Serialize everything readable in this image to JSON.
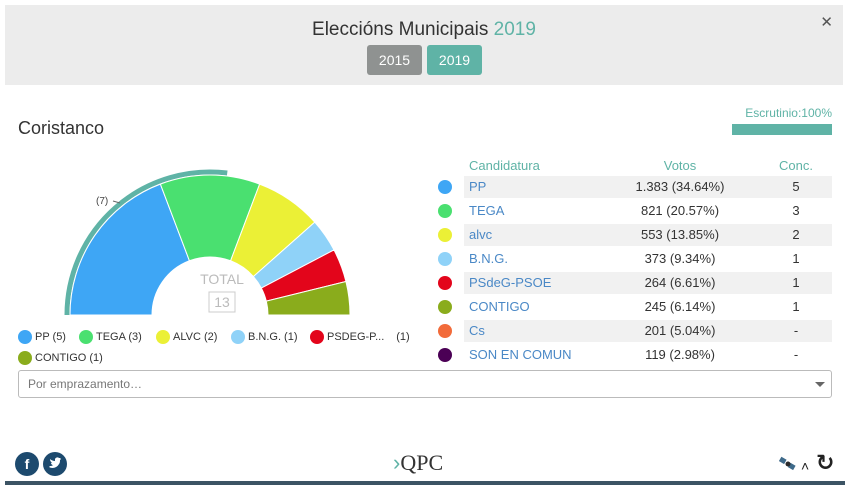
{
  "header": {
    "title_prefix": "Eleccións Municipais",
    "title_year": "2019",
    "years": [
      {
        "label": "2015",
        "color": "#8f9291"
      },
      {
        "label": "2019",
        "color": "#5fb3a6"
      }
    ],
    "close_label": "✕"
  },
  "place": "Coristanco",
  "scrutiny": {
    "label": "Escrutinio:100%",
    "value": 100
  },
  "hemicycle": {
    "total_label": "TOTAL",
    "total_value": "13",
    "majority_label": "(7)",
    "outer_arc_color": "#5fb3a6",
    "seats": [
      {
        "party": "PP",
        "seats": 5,
        "color": "#3ea6f5"
      },
      {
        "party": "TEGA",
        "seats": 3,
        "color": "#4ae070"
      },
      {
        "party": "ALVC",
        "seats": 2,
        "color": "#ebf036"
      },
      {
        "party": "B.N.G.",
        "seats": 1,
        "color": "#8fd2f8"
      },
      {
        "party": "PSdeG-PSOE",
        "seats": 1,
        "color": "#e3051b"
      },
      {
        "party": "CONTIGO",
        "seats": 1,
        "color": "#8aac1c"
      }
    ]
  },
  "legend": [
    {
      "label": "PP (5)",
      "color": "#3ea6f5"
    },
    {
      "label": "TEGA (3)",
      "color": "#4ae070"
    },
    {
      "label": "ALVC (2)",
      "color": "#ebf036"
    },
    {
      "label": "B.N.G. (1)",
      "color": "#8fd2f8"
    },
    {
      "label": "PSDEG-P...",
      "extra": "(1)",
      "color": "#e3051b"
    },
    {
      "label": "CONTIGO (1)",
      "color": "#8aac1c"
    }
  ],
  "table": {
    "headers": {
      "candidate": "Candidatura",
      "votes": "Votos",
      "seats": "Conc."
    },
    "rows": [
      {
        "name": "PP",
        "votes": "1.383 (34.64%)",
        "seats": "5",
        "color": "#3ea6f5"
      },
      {
        "name": "TEGA",
        "votes": "821 (20.57%)",
        "seats": "3",
        "color": "#4ae070"
      },
      {
        "name": "alvc",
        "votes": "553 (13.85%)",
        "seats": "2",
        "color": "#ebf036"
      },
      {
        "name": "B.N.G.",
        "votes": "373 (9.34%)",
        "seats": "1",
        "color": "#8fd2f8"
      },
      {
        "name": "PSdeG-PSOE",
        "votes": "264 (6.61%)",
        "seats": "1",
        "color": "#e3051b"
      },
      {
        "name": "CONTIGO",
        "votes": "245 (6.14%)",
        "seats": "1",
        "color": "#8aac1c"
      },
      {
        "name": "Cs",
        "votes": "201 (5.04%)",
        "seats": "-",
        "color": "#f26b3a"
      },
      {
        "name": "SON EN COMUN",
        "votes": "119 (2.98%)",
        "seats": "-",
        "color": "#4b0055"
      }
    ]
  },
  "location_select": {
    "placeholder": "Por emprazamento…"
  },
  "footer": {
    "facebook": "f",
    "twitter": "•",
    "logo_mark": "›",
    "logo_text": "QPC",
    "chevron": "˄",
    "refresh": "↻"
  }
}
